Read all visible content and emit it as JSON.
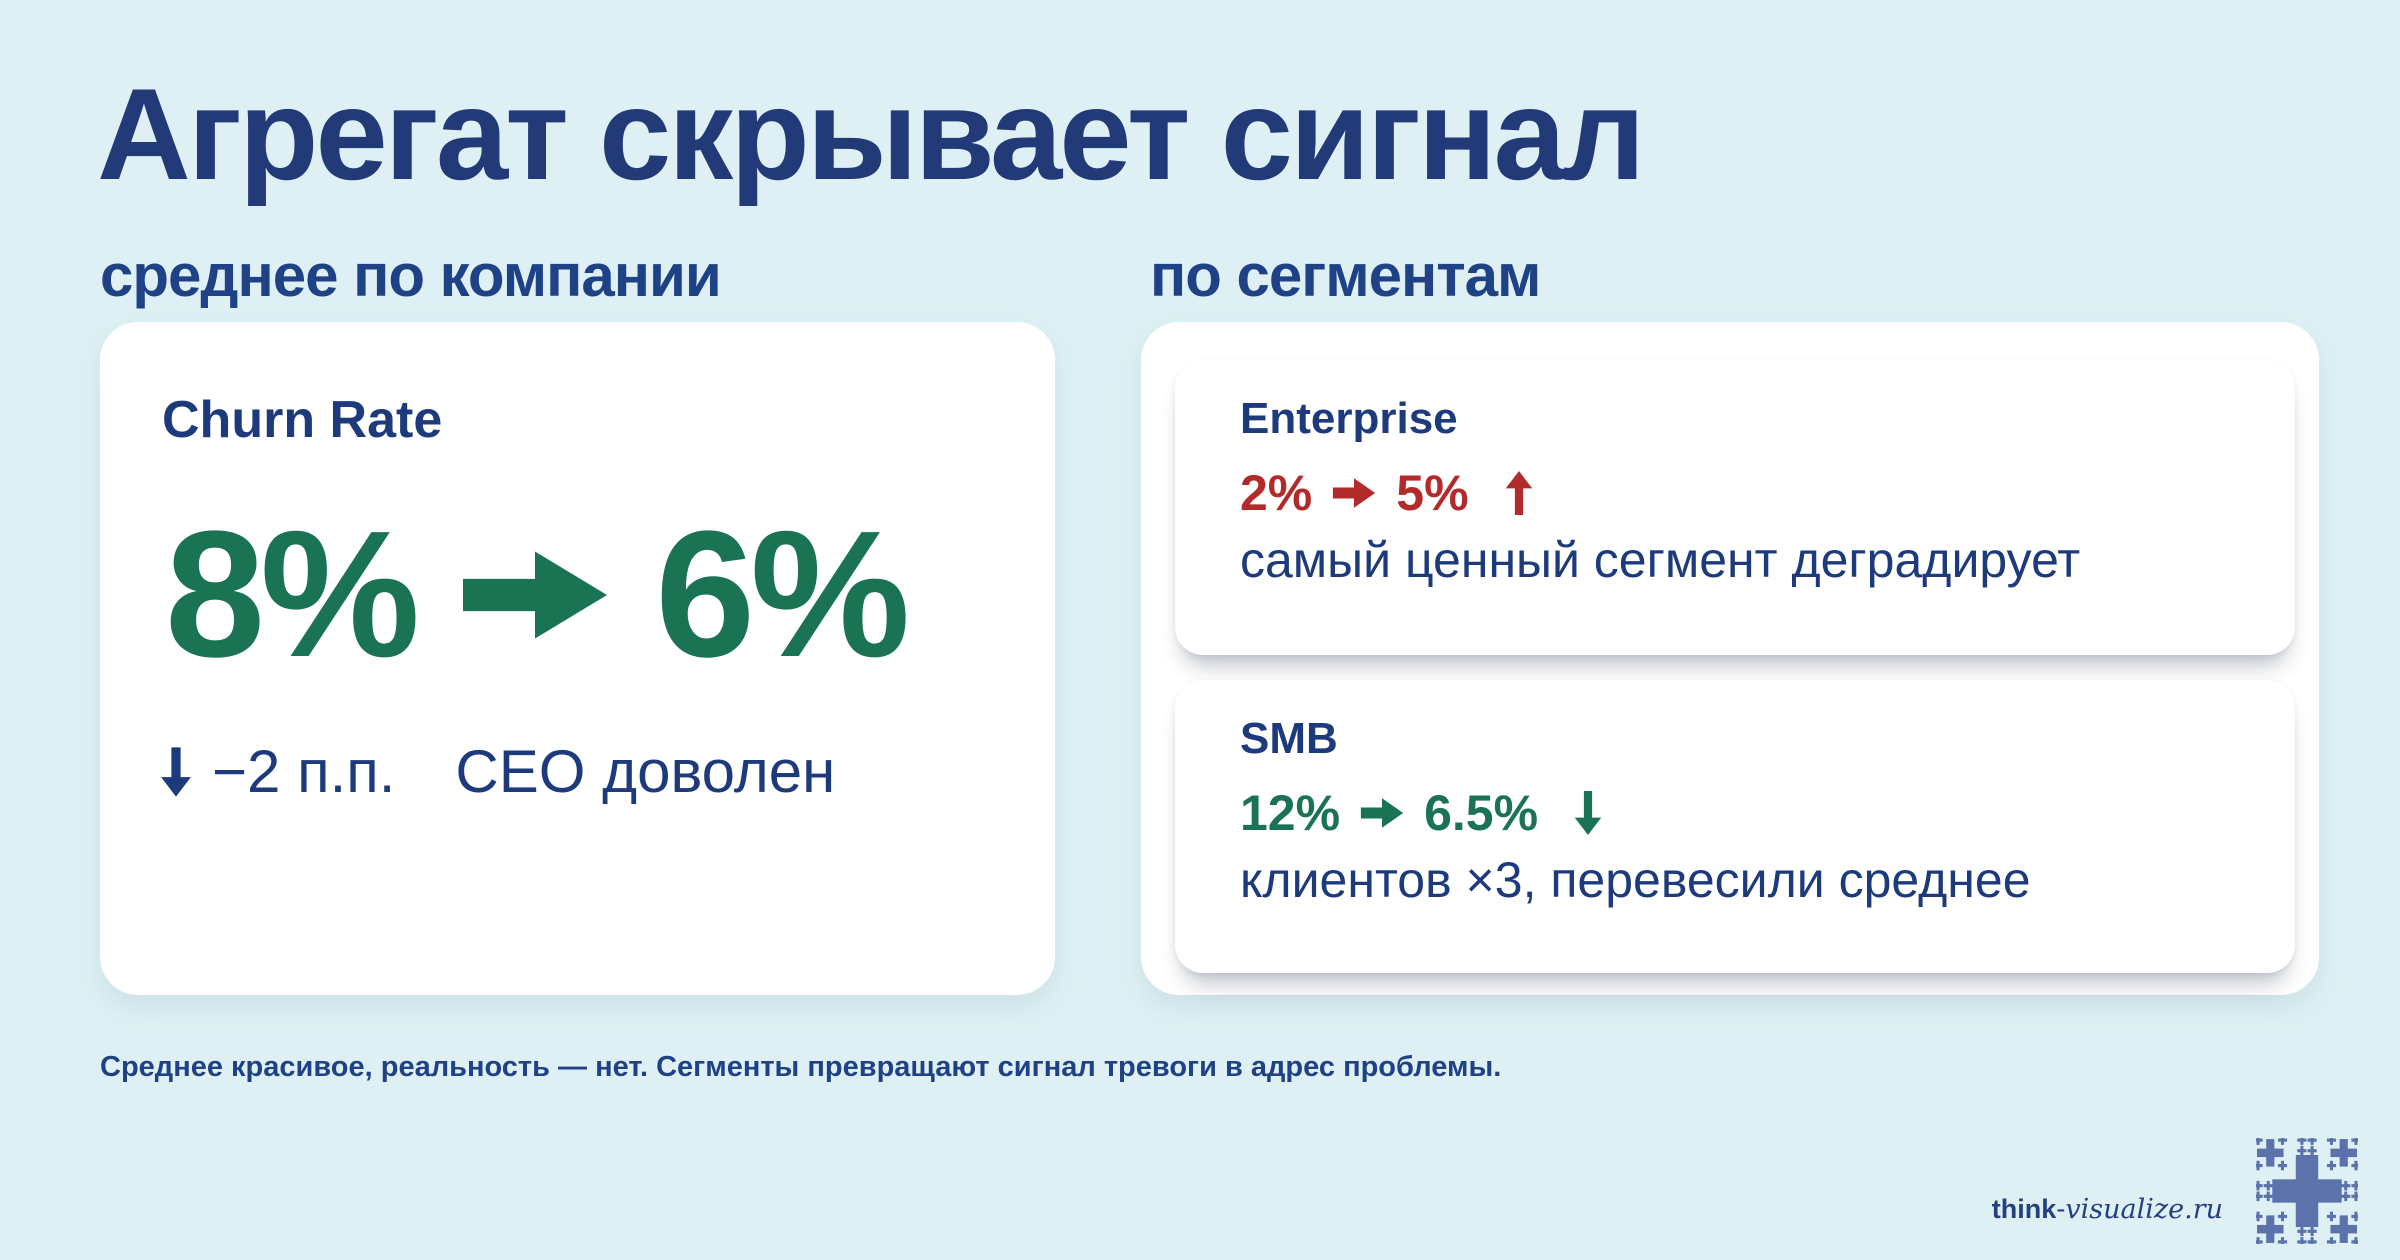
{
  "colors": {
    "background": "#def0f3",
    "navy": "#1d3b7c",
    "header_blue": "#1f4186",
    "green": "#1a7352",
    "red": "#b22a2a",
    "card_white": "#ffffff",
    "logo_blue": "#5b73aa"
  },
  "title": "Агрегат скрывает сигнал",
  "columns": {
    "left_header": "среднее по компании",
    "right_header": "по сегментам"
  },
  "average_card": {
    "metric_label": "Churn Rate",
    "value_from": "8%",
    "value_to": "6%",
    "delta": "−2 п.п.",
    "note": "CEO доволен"
  },
  "segment_cards": [
    {
      "name": "Enterprise",
      "value_from": "2%",
      "value_to": "5%",
      "trend": "up",
      "note": "самый ценный сегмент деградирует"
    },
    {
      "name": "SMB",
      "value_from": "12%",
      "value_to": "6.5%",
      "trend": "down",
      "note": "клиентов ×3, перевесили среднее"
    }
  ],
  "caption": "Среднее красивое, реальность — нет. Сегменты превращают сигнал тревоги в адрес проблемы.",
  "footer": {
    "brand_bold": "think",
    "brand_rest": "-visualize.ru"
  }
}
